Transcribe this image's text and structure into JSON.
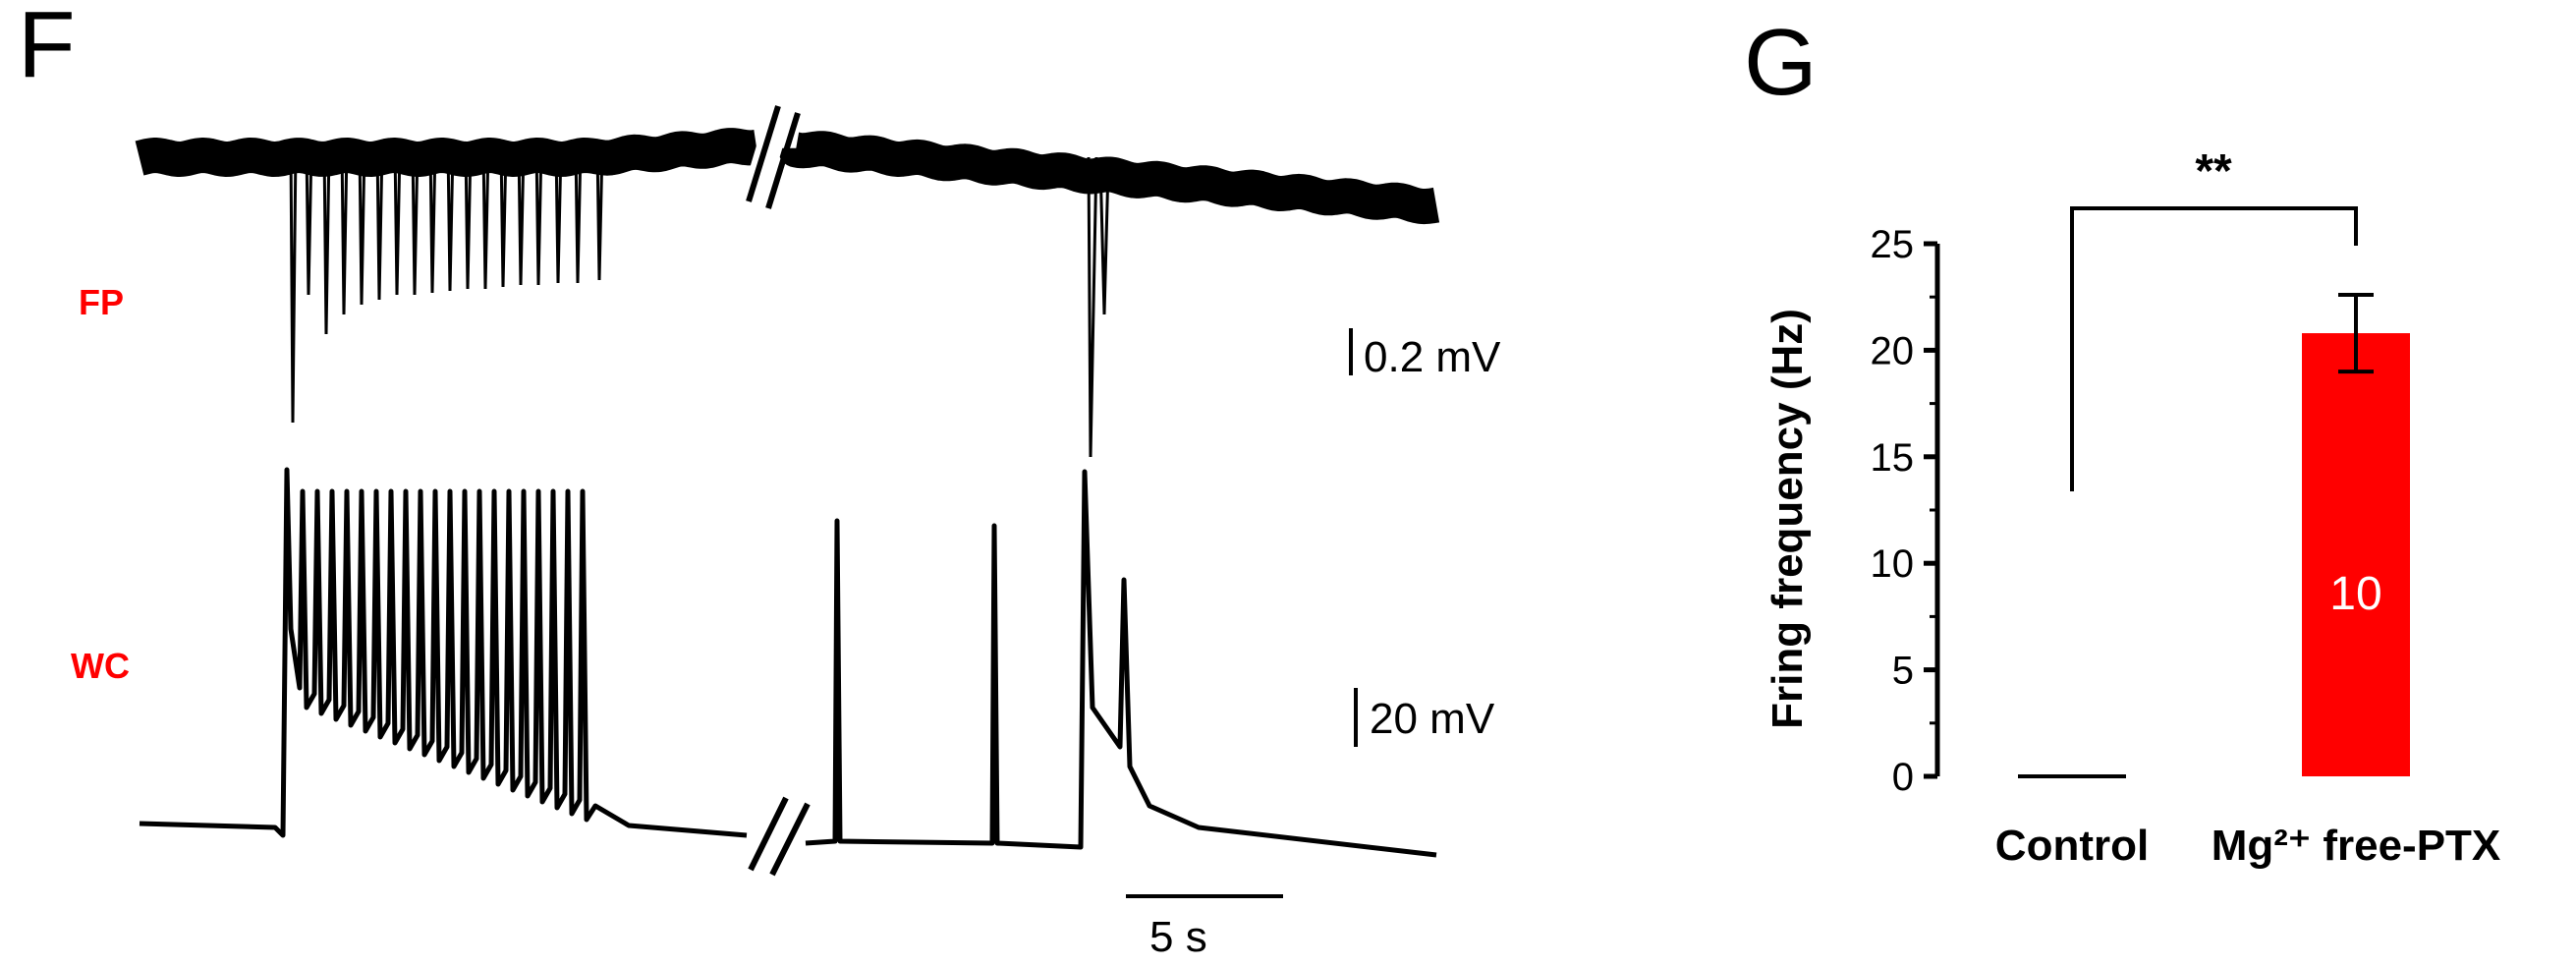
{
  "panels": {
    "f": {
      "letter": "F",
      "trace_labels": {
        "fp": "FP",
        "wc": "WC"
      },
      "scale_bars": {
        "fp": "0.2 mV",
        "wc": "20 mV",
        "time": "5 s"
      }
    },
    "g": {
      "letter": "G",
      "significance": "**",
      "bar_value_label": "10"
    }
  },
  "colors": {
    "accent": "#ff0000",
    "trace": "#000000"
  },
  "chart_data": {
    "type": "bar",
    "title": "",
    "categories": [
      "Control",
      "Mg²⁺ free-PTX"
    ],
    "values": [
      0,
      20.8
    ],
    "error": [
      0,
      1.8
    ],
    "ylabel": "Fring frequency (Hz)",
    "xlabel": "",
    "ylim": [
      0,
      25
    ],
    "yticks": [
      0,
      5,
      10,
      15,
      20,
      25
    ],
    "bar_colors": [
      "#000000",
      "#ff0000"
    ],
    "grid": false,
    "legend": "none"
  }
}
